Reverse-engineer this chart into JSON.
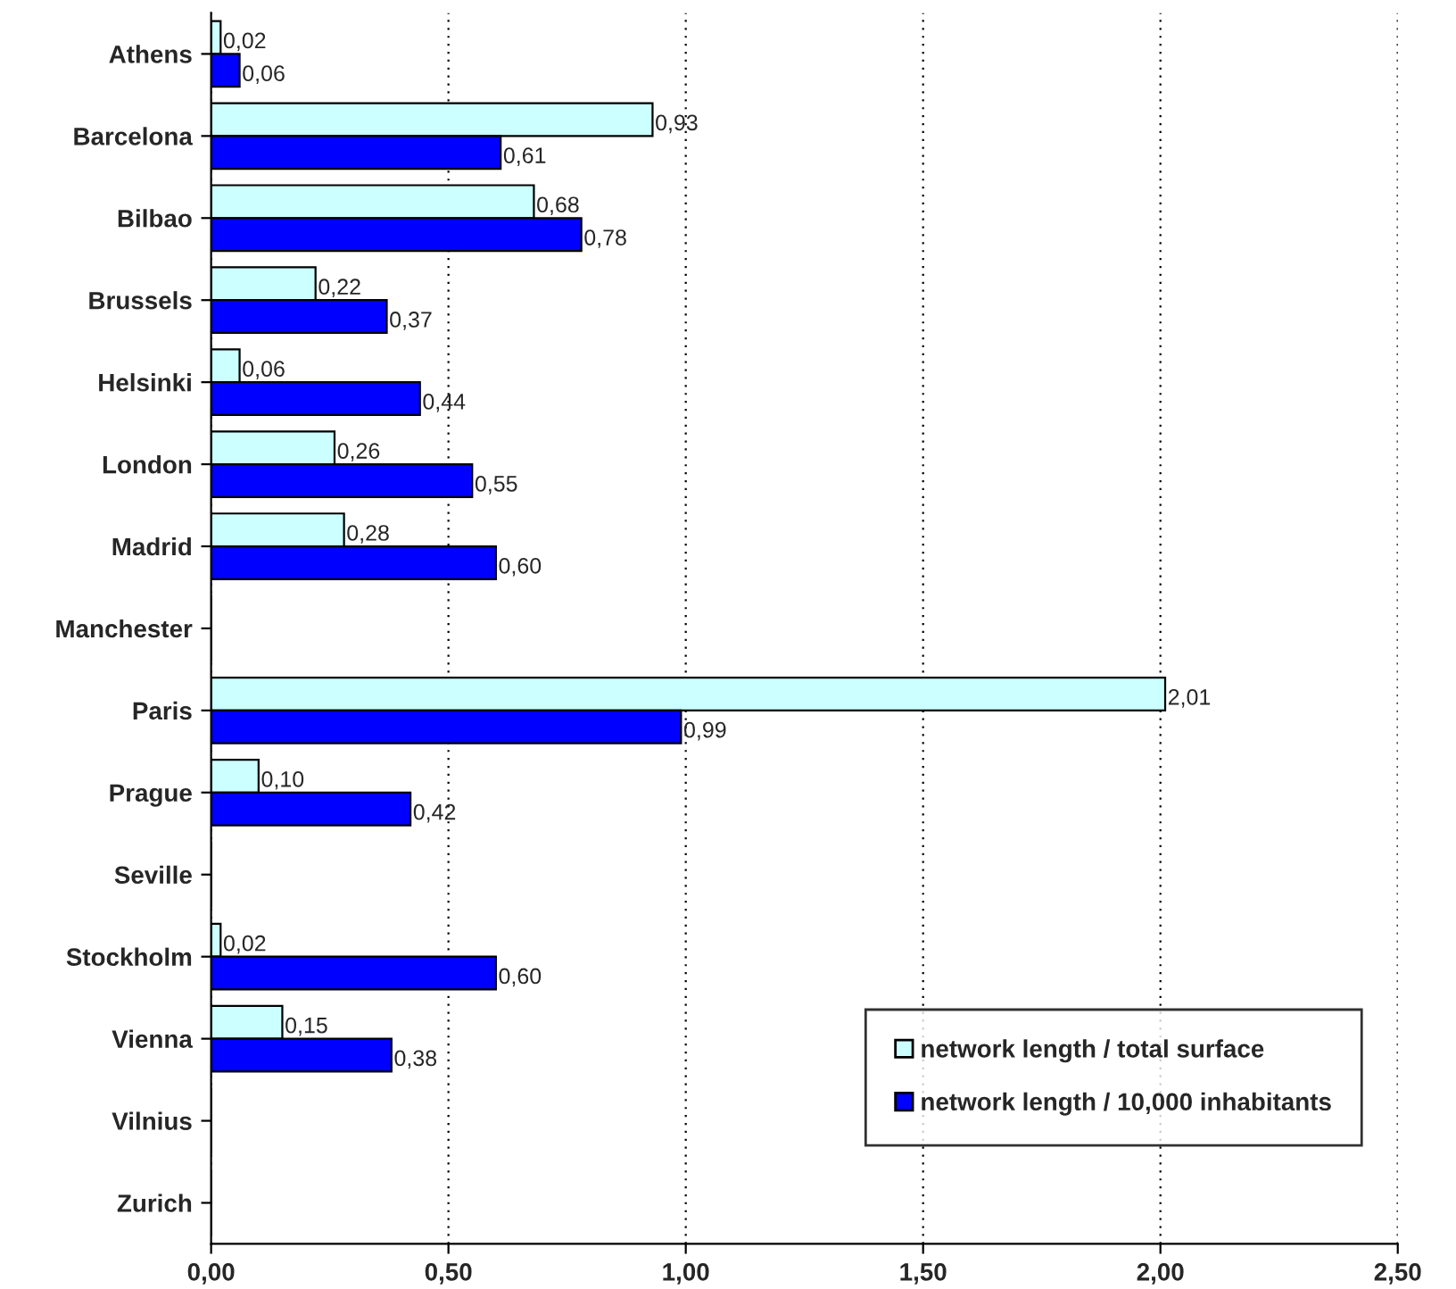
{
  "chart_data": {
    "type": "bar",
    "orientation": "horizontal",
    "categories": [
      "Athens",
      "Barcelona",
      "Bilbao",
      "Brussels",
      "Helsinki",
      "London",
      "Madrid",
      "Manchester",
      "Paris",
      "Prague",
      "Seville",
      "Stockholm",
      "Vienna",
      "Vilnius",
      "Zurich"
    ],
    "series": [
      {
        "name": "network length / total surface",
        "color": "#ccffff",
        "values": [
          0.02,
          0.93,
          0.68,
          0.22,
          0.06,
          0.26,
          0.28,
          null,
          2.01,
          0.1,
          null,
          0.02,
          0.15,
          null,
          null
        ],
        "value_labels": [
          "0,02",
          "0,93",
          "0,68",
          "0,22",
          "0,06",
          "0,26",
          "0,28",
          null,
          "2,01",
          "0,10",
          null,
          "0,02",
          "0,15",
          null,
          null
        ]
      },
      {
        "name": "network length / 10,000 inhabitants",
        "color": "#0000ff",
        "values": [
          0.06,
          0.61,
          0.78,
          0.37,
          0.44,
          0.55,
          0.6,
          null,
          0.99,
          0.42,
          null,
          0.6,
          0.38,
          null,
          null
        ],
        "value_labels": [
          "0,06",
          "0,61",
          "0,78",
          "0,37",
          "0,44",
          "0,55",
          "0,60",
          null,
          "0,99",
          "0,42",
          null,
          "0,60",
          "0,38",
          null,
          null
        ]
      }
    ],
    "xlim": [
      0,
      2.5
    ],
    "xticks": [
      {
        "value": 0,
        "label": "0,00"
      },
      {
        "value": 0.5,
        "label": "0,50"
      },
      {
        "value": 1,
        "label": "1,00"
      },
      {
        "value": 1.5,
        "label": "1,50"
      },
      {
        "value": 2,
        "label": "2,00"
      },
      {
        "value": 2.5,
        "label": "2,50"
      }
    ],
    "grid": "x",
    "legend": "bottom right"
  }
}
